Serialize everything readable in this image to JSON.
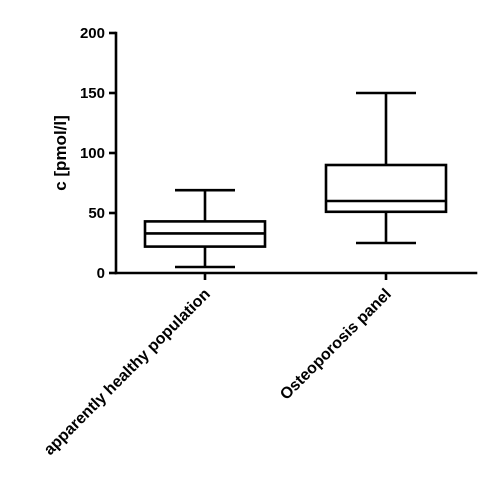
{
  "chart_data": {
    "type": "box",
    "ylabel": "c [pmol/l]",
    "xlabel": "",
    "ylim": [
      0,
      200
    ],
    "yticks": [
      0,
      50,
      100,
      150,
      200
    ],
    "categories": [
      "apparently healthy population",
      "Osteoporosis panel"
    ],
    "boxes": [
      {
        "category": "apparently healthy population",
        "min": 5,
        "q1": 22,
        "median": 33,
        "q3": 43,
        "max": 69
      },
      {
        "category": "Osteoporosis panel",
        "min": 25,
        "q1": 51,
        "median": 60,
        "q3": 90,
        "max": 150
      }
    ],
    "grid": false,
    "legend": "none"
  }
}
